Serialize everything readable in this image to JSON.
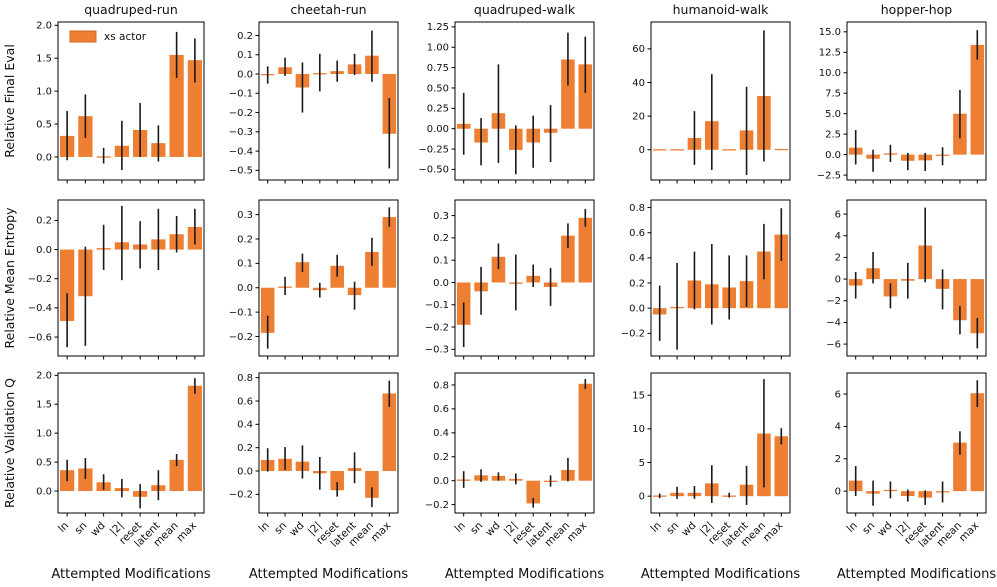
{
  "figure": {
    "xlabel": "Attempted Modifications",
    "legend_label": "xs actor",
    "bar_color": "#ee7e32",
    "legend_edge_color": "#cf6b22",
    "error_color": "#1a1a1a",
    "axis_color": "#000000",
    "text_color": "#111111",
    "row_labels": [
      "Relative Final Eval",
      "Relative Mean Entropy",
      "Relative Validation Q"
    ],
    "col_titles": [
      "quadruped-run",
      "cheetah-run",
      "quadruped-walk",
      "humanoid-walk",
      "hopper-hop"
    ]
  },
  "shared": {
    "categories": [
      "ln",
      "sn",
      "wd",
      "|2|",
      "reset",
      "latent",
      "mean",
      "max"
    ]
  },
  "chart_data": [
    {
      "type": "bar",
      "row": 0,
      "col": 0,
      "title": "quadruped-run",
      "ylabel": "Relative Final Eval",
      "values": [
        0.32,
        0.62,
        0.01,
        0.17,
        0.41,
        0.21,
        1.55,
        1.47
      ],
      "err_lo": [
        -0.05,
        0.29,
        -0.1,
        -0.2,
        0.0,
        -0.07,
        1.2,
        1.13
      ],
      "err_hi": [
        0.7,
        0.95,
        0.14,
        0.55,
        0.82,
        0.48,
        1.9,
        1.8
      ],
      "yticks": [
        0.0,
        0.5,
        1.0,
        1.5,
        2.0
      ],
      "decimals": 1,
      "ylim": [
        -0.35,
        2.05
      ]
    },
    {
      "type": "bar",
      "row": 0,
      "col": 1,
      "title": "cheetah-run",
      "ylabel": "Relative Final Eval",
      "values": [
        -0.005,
        0.035,
        -0.07,
        0.005,
        0.015,
        0.05,
        0.095,
        -0.31
      ],
      "err_lo": [
        -0.05,
        -0.01,
        -0.2,
        -0.09,
        -0.04,
        -0.005,
        -0.04,
        -0.49
      ],
      "err_hi": [
        0.04,
        0.085,
        0.06,
        0.105,
        0.07,
        0.105,
        0.225,
        -0.125
      ],
      "yticks": [
        -0.5,
        -0.4,
        -0.3,
        -0.2,
        -0.1,
        0.0,
        0.1,
        0.2
      ],
      "decimals": 1,
      "ylim": [
        -0.55,
        0.27
      ]
    },
    {
      "type": "bar",
      "row": 0,
      "col": 2,
      "title": "quadruped-walk",
      "ylabel": "Relative Final Eval",
      "values": [
        0.06,
        -0.17,
        0.19,
        -0.26,
        -0.17,
        -0.05,
        0.85,
        0.79
      ],
      "err_lo": [
        -0.32,
        -0.45,
        -0.42,
        -0.56,
        -0.48,
        -0.41,
        0.53,
        0.44
      ],
      "err_hi": [
        0.44,
        0.13,
        0.79,
        0.04,
        0.16,
        0.29,
        1.18,
        1.13
      ],
      "yticks": [
        -0.5,
        -0.25,
        0.0,
        0.25,
        0.5,
        0.75,
        1.0,
        1.25
      ],
      "decimals": 2,
      "ylim": [
        -0.63,
        1.31
      ]
    },
    {
      "type": "bar",
      "row": 0,
      "col": 3,
      "title": "humanoid-walk",
      "ylabel": "Relative Final Eval",
      "values": [
        0.3,
        0.3,
        7.0,
        17.0,
        0.3,
        11.5,
        32.0,
        0.5
      ],
      "err_lo": [
        0.3,
        0.3,
        -9.0,
        -12.0,
        0.3,
        -15.0,
        -7.0,
        0.5
      ],
      "err_hi": [
        0.3,
        0.3,
        23.0,
        45.0,
        0.3,
        37.5,
        71.0,
        0.5
      ],
      "yticks": [
        0,
        20,
        40,
        60
      ],
      "decimals": 0,
      "ylim": [
        -18,
        76
      ]
    },
    {
      "type": "bar",
      "row": 0,
      "col": 4,
      "title": "hopper-hop",
      "ylabel": "Relative Final Eval",
      "values": [
        0.85,
        -0.5,
        0.15,
        -0.75,
        -0.7,
        -0.1,
        5.0,
        13.4
      ],
      "err_lo": [
        -1.2,
        -2.1,
        -0.9,
        -1.9,
        -2.0,
        -1.3,
        2.0,
        11.6
      ],
      "err_hi": [
        3.0,
        0.6,
        1.2,
        0.2,
        0.2,
        0.9,
        7.9,
        15.2
      ],
      "yticks": [
        -2.5,
        0.0,
        2.5,
        5.0,
        7.5,
        10.0,
        12.5,
        15.0
      ],
      "decimals": 1,
      "ylim": [
        -3.1,
        16.2
      ]
    },
    {
      "type": "bar",
      "row": 1,
      "col": 0,
      "title": "quadruped-run",
      "ylabel": "Relative Mean Entropy",
      "values": [
        -0.49,
        -0.32,
        0.01,
        0.05,
        0.035,
        0.07,
        0.105,
        0.155
      ],
      "err_lo": [
        -0.67,
        -0.66,
        -0.14,
        -0.21,
        -0.13,
        -0.14,
        -0.02,
        0.035
      ],
      "err_hi": [
        -0.3,
        0.02,
        0.17,
        0.3,
        0.195,
        0.28,
        0.23,
        0.28
      ],
      "yticks": [
        -0.6,
        -0.4,
        -0.2,
        0.0,
        0.2
      ],
      "decimals": 1,
      "ylim": [
        -0.73,
        0.34
      ]
    },
    {
      "type": "bar",
      "row": 1,
      "col": 1,
      "title": "cheetah-run",
      "ylabel": "Relative Mean Entropy",
      "values": [
        -0.185,
        0.005,
        0.105,
        -0.01,
        0.09,
        -0.03,
        0.147,
        0.29
      ],
      "err_lo": [
        -0.25,
        -0.03,
        0.065,
        -0.04,
        0.045,
        -0.09,
        0.09,
        0.25
      ],
      "err_hi": [
        -0.115,
        0.045,
        0.14,
        0.02,
        0.135,
        0.025,
        0.205,
        0.33
      ],
      "yticks": [
        -0.2,
        -0.1,
        0.0,
        0.1,
        0.2,
        0.3
      ],
      "decimals": 1,
      "ylim": [
        -0.28,
        0.36
      ]
    },
    {
      "type": "bar",
      "row": 1,
      "col": 2,
      "title": "quadruped-walk",
      "ylabel": "Relative Mean Entropy",
      "values": [
        -0.19,
        -0.04,
        0.115,
        0.0,
        0.03,
        -0.02,
        0.21,
        0.29
      ],
      "err_lo": [
        -0.29,
        -0.145,
        0.06,
        -0.125,
        -0.02,
        -0.105,
        0.155,
        0.25
      ],
      "err_hi": [
        -0.09,
        0.07,
        0.175,
        0.125,
        0.08,
        0.065,
        0.265,
        0.33
      ],
      "yticks": [
        -0.3,
        -0.2,
        -0.1,
        0.0,
        0.1,
        0.2,
        0.3
      ],
      "decimals": 1,
      "ylim": [
        -0.33,
        0.37
      ]
    },
    {
      "type": "bar",
      "row": 1,
      "col": 3,
      "title": "humanoid-walk",
      "ylabel": "Relative Mean Entropy",
      "values": [
        -0.05,
        0.01,
        0.22,
        0.19,
        0.165,
        0.215,
        0.45,
        0.585
      ],
      "err_lo": [
        -0.26,
        -0.33,
        -0.01,
        -0.13,
        -0.09,
        0.01,
        0.23,
        0.375
      ],
      "err_hi": [
        0.18,
        0.36,
        0.45,
        0.51,
        0.42,
        0.42,
        0.67,
        0.795
      ],
      "yticks": [
        -0.2,
        0.0,
        0.2,
        0.4,
        0.6,
        0.8
      ],
      "decimals": 1,
      "ylim": [
        -0.38,
        0.86
      ]
    },
    {
      "type": "bar",
      "row": 1,
      "col": 4,
      "title": "hopper-hop",
      "ylabel": "Relative Mean Entropy",
      "values": [
        -0.6,
        1.0,
        -1.6,
        -0.15,
        3.1,
        -0.9,
        -3.8,
        -5.0
      ],
      "err_lo": [
        -1.8,
        -0.4,
        -2.7,
        -1.8,
        -0.3,
        -2.8,
        -5.1,
        -6.4
      ],
      "err_hi": [
        0.65,
        2.5,
        -0.4,
        1.5,
        6.6,
        0.9,
        -2.5,
        -3.6
      ],
      "yticks": [
        -6,
        -4,
        -2,
        0,
        2,
        4,
        6
      ],
      "decimals": 0,
      "ylim": [
        -7.1,
        7.3
      ]
    },
    {
      "type": "bar",
      "row": 2,
      "col": 0,
      "title": "quadruped-run",
      "ylabel": "Relative Validation Q",
      "values": [
        0.36,
        0.39,
        0.15,
        0.05,
        -0.1,
        0.1,
        0.54,
        1.82
      ],
      "err_lo": [
        0.17,
        0.21,
        0.02,
        -0.11,
        -0.3,
        -0.16,
        0.43,
        1.68
      ],
      "err_hi": [
        0.54,
        0.57,
        0.29,
        0.21,
        0.12,
        0.36,
        0.64,
        1.95
      ],
      "yticks": [
        0.0,
        0.5,
        1.0,
        1.5,
        2.0
      ],
      "decimals": 1,
      "ylim": [
        -0.38,
        2.04
      ]
    },
    {
      "type": "bar",
      "row": 2,
      "col": 1,
      "title": "cheetah-run",
      "ylabel": "Relative Validation Q",
      "values": [
        0.095,
        0.105,
        0.08,
        -0.02,
        -0.165,
        0.025,
        -0.23,
        0.665
      ],
      "err_lo": [
        -0.005,
        0.01,
        -0.065,
        -0.16,
        -0.22,
        -0.105,
        -0.31,
        0.55
      ],
      "err_hi": [
        0.195,
        0.205,
        0.22,
        0.12,
        -0.095,
        0.16,
        -0.14,
        0.775
      ],
      "yticks": [
        -0.2,
        0.0,
        0.2,
        0.4,
        0.6,
        0.8
      ],
      "decimals": 1,
      "ylim": [
        -0.36,
        0.84
      ]
    },
    {
      "type": "bar",
      "row": 2,
      "col": 2,
      "title": "quadruped-walk",
      "ylabel": "Relative Validation Q",
      "values": [
        0.01,
        0.045,
        0.04,
        0.015,
        -0.19,
        0.0,
        0.09,
        0.81
      ],
      "err_lo": [
        -0.06,
        -0.01,
        0.0,
        -0.03,
        -0.225,
        -0.05,
        -0.005,
        0.765
      ],
      "err_hi": [
        0.08,
        0.095,
        0.07,
        0.06,
        -0.145,
        0.045,
        0.19,
        0.85
      ],
      "yticks": [
        -0.2,
        0.0,
        0.2,
        0.4,
        0.6,
        0.8
      ],
      "decimals": 1,
      "ylim": [
        -0.27,
        0.9
      ]
    },
    {
      "type": "bar",
      "row": 2,
      "col": 3,
      "title": "humanoid-walk",
      "ylabel": "Relative Validation Q",
      "values": [
        0.1,
        0.5,
        0.5,
        1.9,
        0.1,
        1.7,
        9.3,
        8.9
      ],
      "err_lo": [
        -0.3,
        -0.4,
        -0.4,
        -1.0,
        -0.2,
        -1.3,
        1.3,
        7.7
      ],
      "err_hi": [
        0.4,
        1.4,
        1.5,
        4.6,
        0.5,
        4.5,
        17.4,
        10.1
      ],
      "yticks": [
        0,
        5,
        10,
        15
      ],
      "decimals": 0,
      "ylim": [
        -2.5,
        18.3
      ]
    },
    {
      "type": "bar",
      "row": 2,
      "col": 4,
      "title": "hopper-hop",
      "ylabel": "Relative Validation Q",
      "values": [
        0.65,
        -0.15,
        0.08,
        -0.3,
        -0.4,
        -0.05,
        3.0,
        6.05
      ],
      "err_lo": [
        -0.3,
        -0.9,
        -0.45,
        -0.65,
        -0.85,
        -0.7,
        2.25,
        5.2
      ],
      "err_hi": [
        1.55,
        0.65,
        0.6,
        0.1,
        0.05,
        0.6,
        3.7,
        6.85
      ],
      "yticks": [
        0,
        2,
        4,
        6
      ],
      "decimals": 0,
      "ylim": [
        -1.35,
        7.3
      ]
    }
  ]
}
